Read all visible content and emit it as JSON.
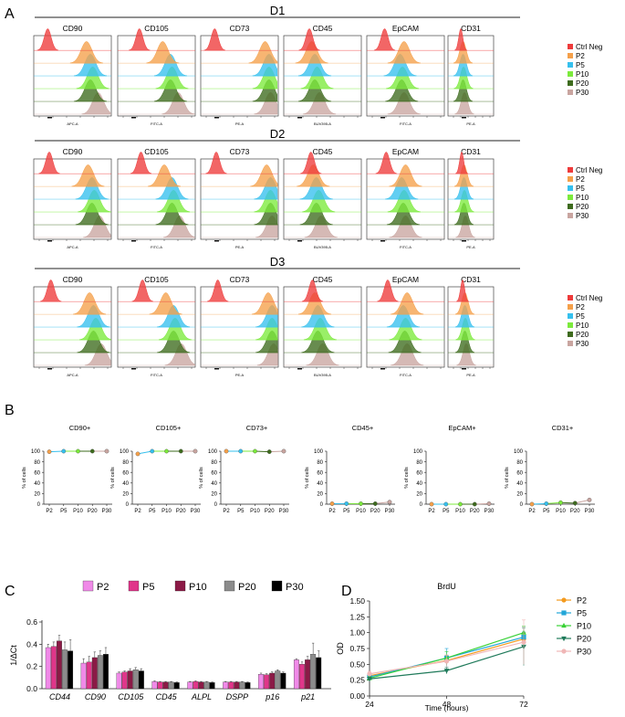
{
  "panels": {
    "A": "A",
    "B": "B",
    "C": "C",
    "D": "D"
  },
  "colors": {
    "Ctrl Neg": "#ee3b3b",
    "P2": "#f5a04a",
    "P5": "#36c0ee",
    "P10": "#7cea3c",
    "P20": "#3e6b1e",
    "P30": "#c9a5a0"
  },
  "flow": {
    "donors": [
      "D1",
      "D2",
      "D3"
    ],
    "markers": [
      "CD90",
      "CD105",
      "CD73",
      "CD45",
      "EpCAM",
      "CD31"
    ],
    "xlabels": [
      "APC-A",
      "FITC-A",
      "PE-A",
      "BUV395-A",
      "FITC-A",
      "PE-A"
    ],
    "legend": [
      "Ctrl Neg",
      "P2",
      "P5",
      "P10",
      "P20",
      "P30"
    ],
    "peak_fraction": [
      [
        0.2,
        0.7,
        0.75,
        0.78,
        0.75,
        0.85
      ],
      [
        0.3,
        0.6,
        0.7,
        0.72,
        0.7,
        0.8
      ],
      [
        0.2,
        0.85,
        0.9,
        0.9,
        0.9,
        0.92
      ],
      [
        0.35,
        0.38,
        0.42,
        0.45,
        0.42,
        0.48
      ],
      [
        0.25,
        0.5,
        0.45,
        0.48,
        0.47,
        0.5
      ],
      [
        0.3,
        0.35,
        0.35,
        0.36,
        0.35,
        0.38
      ]
    ]
  },
  "chart_data": [
    {
      "type": "line",
      "id": "B",
      "ylabel": "% of cells",
      "categories": [
        "P2",
        "P5",
        "P10",
        "P20",
        "P30"
      ],
      "ylim": [
        0,
        100
      ],
      "yticks": [
        0,
        20,
        40,
        60,
        80,
        100
      ],
      "panels": [
        {
          "title": "CD90+",
          "values": [
            99,
            100,
            100,
            100,
            100
          ]
        },
        {
          "title": "CD105+",
          "values": [
            95,
            100,
            100,
            100,
            100
          ]
        },
        {
          "title": "CD73+",
          "values": [
            100,
            100,
            100,
            99,
            100
          ]
        },
        {
          "title": "CD45+",
          "values": [
            1,
            1,
            1,
            1,
            4
          ]
        },
        {
          "title": "EpCAM+",
          "values": [
            0,
            0,
            0,
            0,
            1
          ]
        },
        {
          "title": "CD31+",
          "values": [
            0,
            1,
            3,
            2,
            8
          ]
        }
      ]
    },
    {
      "type": "bar",
      "id": "C",
      "ylabel": "1/ΔCt",
      "ylim": [
        0,
        0.6
      ],
      "yticks": [
        "0.0",
        "0.2",
        "0.4",
        "0.6"
      ],
      "categories": [
        "CD44",
        "CD90",
        "CD105",
        "CD45",
        "ALPL",
        "DSPP",
        "p16",
        "p21"
      ],
      "series": [
        {
          "name": "P2",
          "color": "#f08ae8",
          "values": [
            0.37,
            0.23,
            0.14,
            0.065,
            0.06,
            0.06,
            0.13,
            0.26
          ],
          "errors": [
            0.03,
            0.04,
            0.01,
            0.005,
            0.005,
            0.005,
            0.01,
            0.01
          ]
        },
        {
          "name": "P5",
          "color": "#e0368a",
          "values": [
            0.38,
            0.24,
            0.15,
            0.06,
            0.065,
            0.06,
            0.125,
            0.22
          ],
          "errors": [
            0.04,
            0.05,
            0.01,
            0.005,
            0.005,
            0.005,
            0.01,
            0.02
          ]
        },
        {
          "name": "P10",
          "color": "#8b1a46",
          "values": [
            0.43,
            0.28,
            0.16,
            0.06,
            0.06,
            0.06,
            0.14,
            0.26
          ],
          "errors": [
            0.05,
            0.05,
            0.02,
            0.005,
            0.005,
            0.005,
            0.01,
            0.03
          ]
        },
        {
          "name": "P20",
          "color": "#8c8c8c",
          "values": [
            0.35,
            0.3,
            0.17,
            0.06,
            0.06,
            0.06,
            0.16,
            0.31
          ],
          "errors": [
            0.07,
            0.04,
            0.02,
            0.005,
            0.005,
            0.005,
            0.01,
            0.1
          ]
        },
        {
          "name": "P30",
          "color": "#000000",
          "values": [
            0.34,
            0.31,
            0.16,
            0.055,
            0.055,
            0.055,
            0.14,
            0.28
          ],
          "errors": [
            0.1,
            0.06,
            0.02,
            0.005,
            0.005,
            0.005,
            0.01,
            0.06
          ]
        }
      ]
    },
    {
      "type": "line",
      "id": "D",
      "title": "BrdU",
      "xlabel": "Time (hours)",
      "ylabel": "OD",
      "x": [
        24,
        48,
        72
      ],
      "ylim": [
        0,
        1.5
      ],
      "yticks": [
        "0.00",
        "0.25",
        "0.50",
        "0.75",
        "1.00",
        "1.25",
        "1.50"
      ],
      "series": [
        {
          "name": "P2",
          "color": "#f39a1e",
          "marker": "circle",
          "values": [
            0.32,
            0.56,
            0.9
          ],
          "errors": [
            0.04,
            0.08,
            0.1
          ]
        },
        {
          "name": "P5",
          "color": "#22a6d8",
          "marker": "square",
          "values": [
            0.3,
            0.6,
            0.93
          ],
          "errors": [
            0.04,
            0.15,
            0.08
          ]
        },
        {
          "name": "P10",
          "color": "#39d136",
          "marker": "triangle",
          "values": [
            0.28,
            0.6,
            1.0
          ],
          "errors": [
            0.03,
            0.1,
            0.1
          ]
        },
        {
          "name": "P20",
          "color": "#1f7a5a",
          "marker": "triangle-down",
          "values": [
            0.27,
            0.4,
            0.78
          ],
          "errors": [
            0.03,
            0.05,
            0.3
          ]
        },
        {
          "name": "P30",
          "color": "#f0b6b6",
          "marker": "circle",
          "values": [
            0.35,
            0.55,
            0.85
          ],
          "errors": [
            0.04,
            0.1,
            0.35
          ]
        }
      ]
    }
  ]
}
